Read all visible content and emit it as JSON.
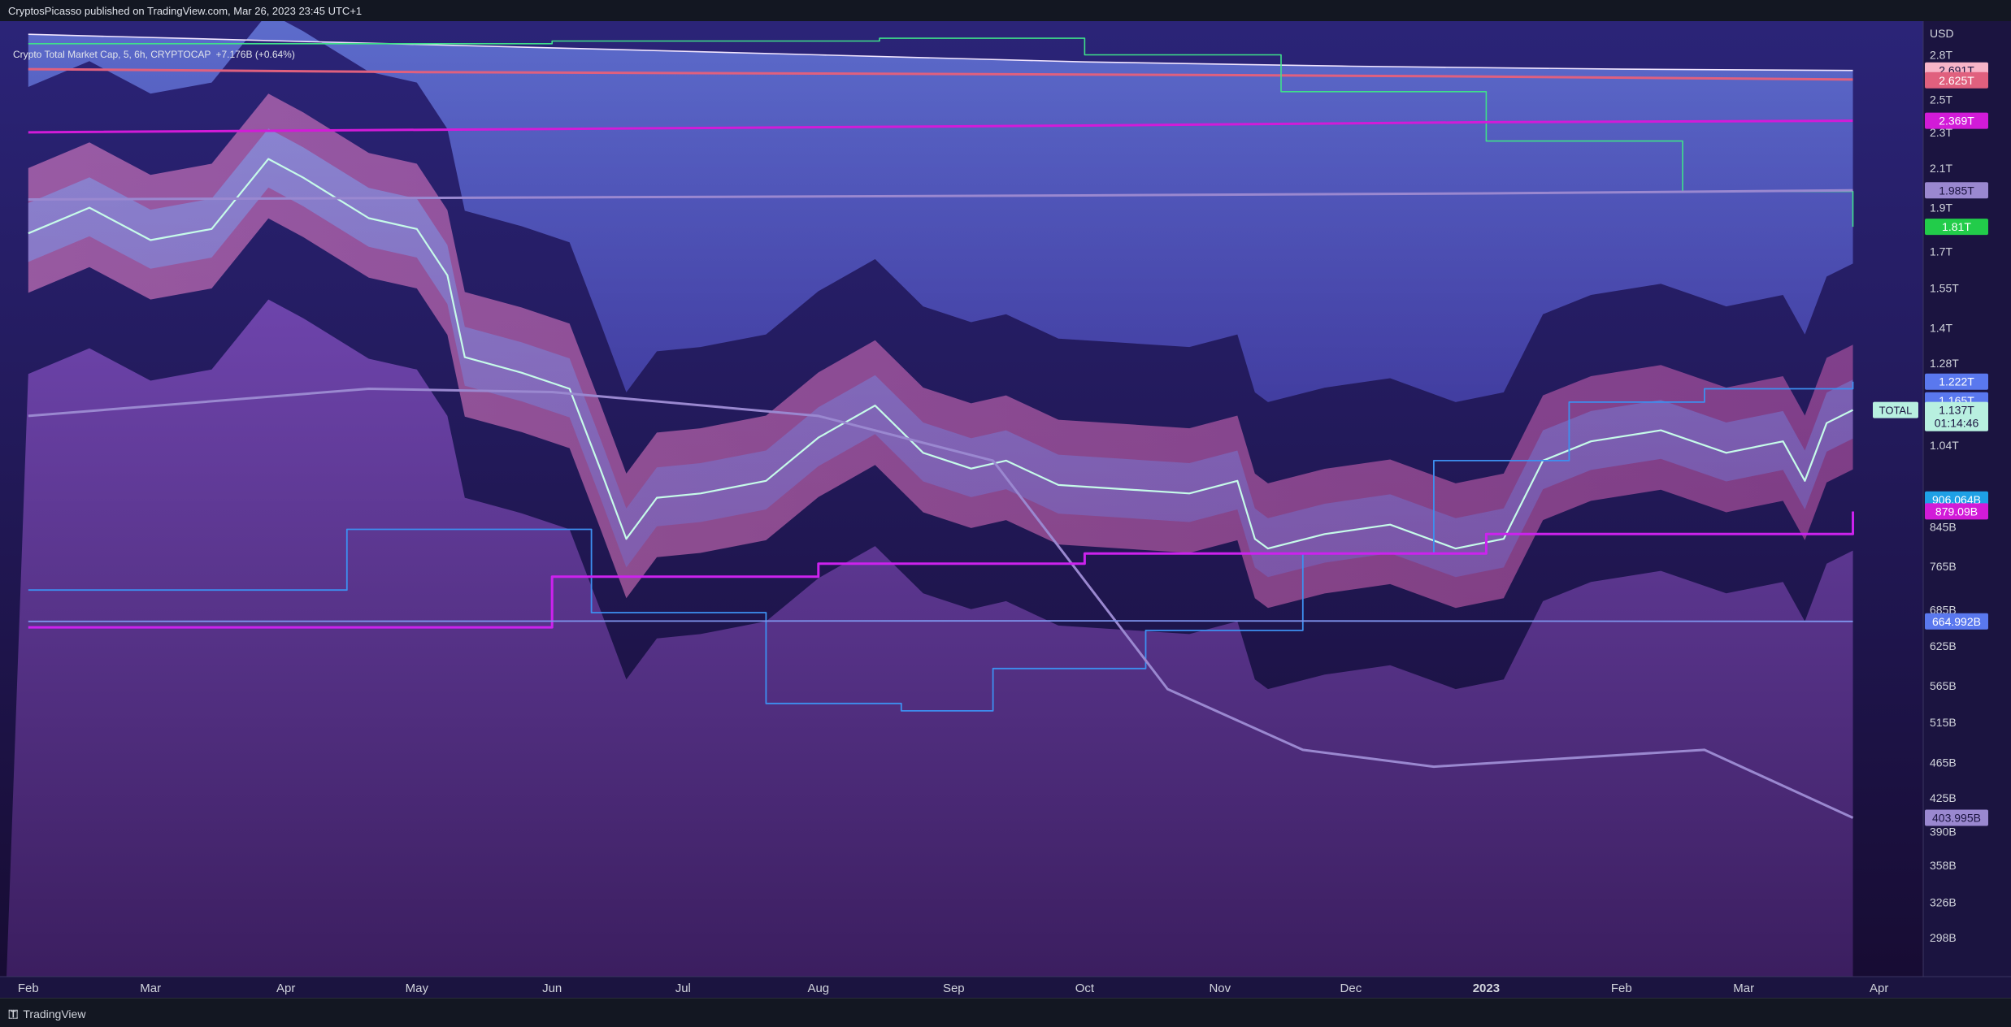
{
  "header": {
    "published": "CryptosPicasso published on TradingView.com, Mar 26, 2023 23:45 UTC+1"
  },
  "legend": {
    "symbol": "Crypto Total Market Cap, 5, 6h, CRYPTOCAP",
    "change": "+7.176B (+0.64%)"
  },
  "footer": {
    "brand": "TradingView",
    "logo_icon": "tradingview-logo-icon"
  },
  "colors": {
    "background_top": "#2a2470",
    "background_bottom": "#1a0f3a",
    "price_line": "#b8f5e4",
    "bands_blue": "#6f8ff0",
    "bands_pink": "#f07acb",
    "magenta": "#cc22ee"
  },
  "chart_data": {
    "type": "line",
    "title": "Crypto Total Market Cap, 5, 6h, CRYPTOCAP",
    "currency": "USD",
    "y_scale": "log",
    "ylim": [
      "290B",
      "3.0T"
    ],
    "x_ticks": [
      "Feb",
      "Mar",
      "Apr",
      "May",
      "Jun",
      "Jul",
      "Aug",
      "Sep",
      "Oct",
      "Nov",
      "Dec",
      "2023",
      "Feb",
      "Mar",
      "Apr"
    ],
    "y_ticks": [
      "2.8T",
      "2.5T",
      "2.3T",
      "2.1T",
      "1.9T",
      "1.7T",
      "1.55T",
      "1.4T",
      "1.28T",
      "1.04T",
      "845B",
      "765B",
      "685B",
      "625B",
      "565B",
      "515B",
      "465B",
      "425B",
      "390B",
      "358B",
      "326B",
      "298B"
    ],
    "series": [
      {
        "name": "TOTAL",
        "x": [
          "2022-02-01",
          "2022-02-15",
          "2022-03-01",
          "2022-03-15",
          "2022-03-28",
          "2022-04-05",
          "2022-04-20",
          "2022-05-01",
          "2022-05-08",
          "2022-05-12",
          "2022-05-25",
          "2022-06-05",
          "2022-06-12",
          "2022-06-18",
          "2022-06-25",
          "2022-07-05",
          "2022-07-20",
          "2022-08-01",
          "2022-08-14",
          "2022-08-25",
          "2022-09-05",
          "2022-09-13",
          "2022-09-25",
          "2022-10-10",
          "2022-10-25",
          "2022-11-05",
          "2022-11-09",
          "2022-11-12",
          "2022-11-25",
          "2022-12-10",
          "2022-12-25",
          "2023-01-05",
          "2023-01-14",
          "2023-01-25",
          "2023-02-10",
          "2023-02-25",
          "2023-03-10",
          "2023-03-15",
          "2023-03-20",
          "2023-03-26"
        ],
        "y": [
          1.78,
          1.9,
          1.75,
          1.8,
          2.15,
          2.05,
          1.85,
          1.8,
          1.6,
          1.3,
          1.25,
          1.2,
          0.98,
          0.82,
          0.91,
          0.92,
          0.95,
          1.06,
          1.15,
          1.02,
          0.98,
          1.0,
          0.94,
          0.93,
          0.92,
          0.95,
          0.82,
          0.8,
          0.83,
          0.85,
          0.8,
          0.82,
          1.0,
          1.05,
          1.08,
          1.02,
          1.05,
          0.95,
          1.1,
          1.137
        ]
      },
      {
        "name": "",
        "x": [
          "2022-02-01",
          "2022-04-01",
          "2022-06-01",
          "2022-08-01",
          "2022-10-01",
          "2022-12-01",
          "2023-02-01",
          "2023-03-26"
        ],
        "y": [
          2.95,
          2.9,
          2.85,
          2.8,
          2.75,
          2.72,
          2.7,
          2.691
        ]
      },
      {
        "name": "",
        "x": [
          "2022-02-01",
          "2022-05-01",
          "2022-08-01",
          "2022-11-01",
          "2023-01-01",
          "2023-03-26"
        ],
        "y": [
          2.7,
          2.68,
          2.67,
          2.66,
          2.65,
          2.63
        ]
      },
      {
        "name": "",
        "x": [
          "2022-02-01",
          "2022-06-01",
          "2022-08-15",
          "2022-10-01",
          "2022-11-15",
          "2023-01-01",
          "2023-02-15",
          "2023-03-26"
        ],
        "y": [
          2.88,
          2.9,
          2.92,
          2.8,
          2.55,
          2.25,
          1.98,
          1.81
        ]
      },
      {
        "name": "",
        "x": [
          "2022-02-01",
          "2022-06-01",
          "2022-10-01",
          "2023-01-01",
          "2023-03-26"
        ],
        "y": [
          2.3,
          2.32,
          2.34,
          2.36,
          2.369
        ]
      },
      {
        "name": "",
        "x": [
          "2022-02-01",
          "2022-06-01",
          "2022-10-01",
          "2023-01-01",
          "2023-03-26"
        ],
        "y": [
          1.94,
          1.95,
          1.96,
          1.97,
          1.985
        ]
      },
      {
        "name": "",
        "x": [
          "2022-02-01",
          "2022-04-15",
          "2022-06-10",
          "2022-07-20",
          "2022-08-20",
          "2022-09-10",
          "2022-10-15",
          "2022-11-20",
          "2022-12-20",
          "2023-01-20",
          "2023-02-20",
          "2023-03-26"
        ],
        "y": [
          0.72,
          0.84,
          0.68,
          0.54,
          0.53,
          0.59,
          0.65,
          0.79,
          1.0,
          1.16,
          1.2,
          1.222
        ]
      },
      {
        "name": "",
        "x": [
          "2022-02-01",
          "2022-04-20",
          "2022-06-01",
          "2022-08-01",
          "2022-09-10",
          "2022-10-20",
          "2022-11-20",
          "2022-12-20",
          "2023-01-20",
          "2023-02-20",
          "2023-03-26"
        ],
        "y": [
          1.12,
          1.2,
          1.19,
          1.12,
          1.0,
          0.56,
          0.48,
          0.46,
          0.47,
          0.48,
          0.404
        ]
      },
      {
        "name": "",
        "x": [
          "2022-02-01",
          "2022-06-01",
          "2022-08-01",
          "2022-10-01",
          "2023-01-01",
          "2023-03-26"
        ],
        "y": [
          0.655,
          0.745,
          0.77,
          0.79,
          0.83,
          0.879
        ]
      },
      {
        "name": "",
        "x": [
          "2022-02-01",
          "2022-10-01",
          "2023-03-26"
        ],
        "y": [
          0.665,
          0.666,
          0.665
        ]
      }
    ],
    "price_labels": [
      {
        "text": "2.691T",
        "color": "#f7b5c8"
      },
      {
        "text": "2.625T",
        "color": "#e0607e"
      },
      {
        "text": "2.369T",
        "color": "#d21bd8"
      },
      {
        "text": "1.985T",
        "color": "#9a88d0"
      },
      {
        "text": "1.81T",
        "color": "#22cc4a"
      },
      {
        "text": "1.222T",
        "color": "#5a78ee"
      },
      {
        "text": "1.165T",
        "color": "#5a78ee"
      },
      {
        "text": "1.137T",
        "color": "#b8f0e0"
      },
      {
        "text": "01:14:46",
        "color": "#b8f0e0"
      },
      {
        "text": "906.064B",
        "color": "#1ea0e6"
      },
      {
        "text": "879.09B",
        "color": "#d21bd8"
      },
      {
        "text": "664.992B",
        "color": "#5a78ee"
      },
      {
        "text": "403.995B",
        "color": "#9a88d0"
      }
    ],
    "symbol_tag": "TOTAL",
    "grid": false,
    "legend_position": "top-left"
  }
}
